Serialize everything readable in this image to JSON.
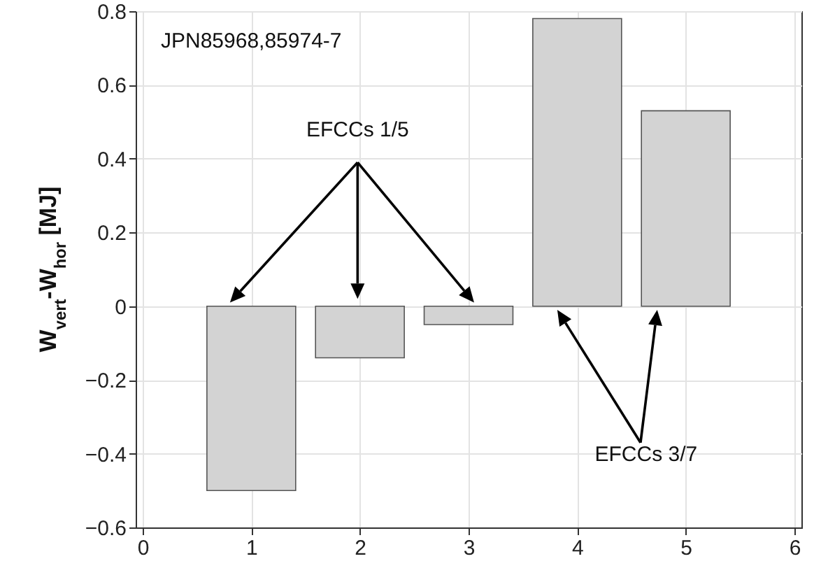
{
  "chart_data": {
    "type": "bar",
    "x": [
      1,
      2,
      3,
      4,
      5
    ],
    "values": [
      -0.5,
      -0.14,
      -0.05,
      0.78,
      0.53
    ],
    "color": "#d3d3d3",
    "xlim": [
      0,
      6
    ],
    "xticks": [
      0,
      1,
      2,
      3,
      4,
      5,
      6
    ],
    "ylim": [
      -0.6,
      0.8
    ],
    "yticks": [
      -0.6,
      -0.4,
      -0.2,
      0,
      0.2,
      0.4,
      0.6,
      0.8
    ],
    "ylabel": "W$_{vert}$-W$_{hor}$ [MJ]",
    "grid": true,
    "annotations": [
      "JPN85968,85974-7",
      "EFCCs 1/5",
      "EFCCs 3/7"
    ]
  }
}
